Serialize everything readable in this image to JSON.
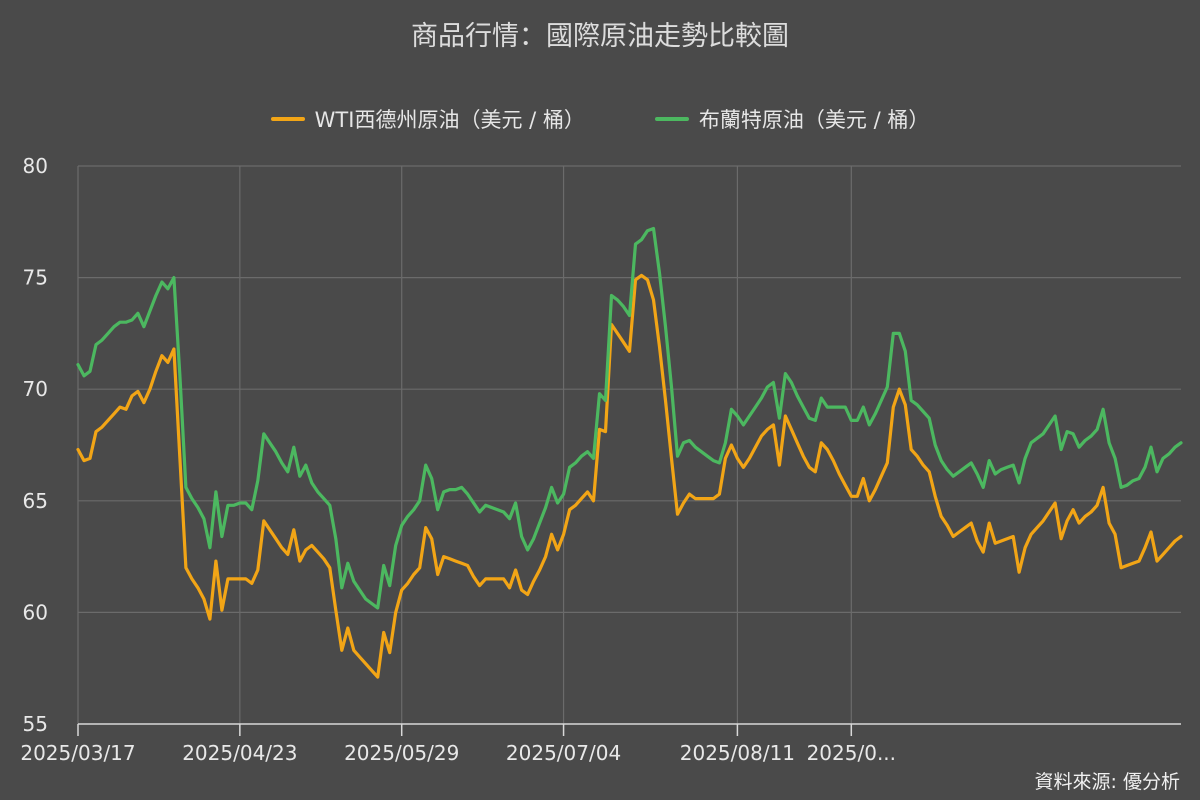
{
  "chart_data": {
    "type": "line",
    "title": "商品行情：國際原油走勢比較圖",
    "xlabel": "",
    "ylabel": "",
    "ylim": [
      55,
      80
    ],
    "yticks": [
      55,
      60,
      65,
      70,
      75,
      80
    ],
    "xticks": [
      {
        "index": 0,
        "label": "2025/03/17"
      },
      {
        "index": 27,
        "label": "2025/04/23"
      },
      {
        "index": 54,
        "label": "2025/05/29"
      },
      {
        "index": 81,
        "label": "2025/07/04"
      },
      {
        "index": 110,
        "label": "2025/08/11"
      },
      {
        "index": 129,
        "label": "2025/0..."
      }
    ],
    "grid": true,
    "legend_position": "top-center",
    "series": [
      {
        "name": "WTI西德州原油（美元 / 桶）",
        "color": "#f2a516",
        "values": [
          67.3,
          66.8,
          66.9,
          68.1,
          68.3,
          68.6,
          68.9,
          69.2,
          69.1,
          69.7,
          69.9,
          69.4,
          70.0,
          70.8,
          71.5,
          71.2,
          71.8,
          66.9,
          62.0,
          61.5,
          61.1,
          60.6,
          59.7,
          62.3,
          60.1,
          61.5,
          61.5,
          61.5,
          61.5,
          61.3,
          61.9,
          64.1,
          63.7,
          63.3,
          62.9,
          62.6,
          63.7,
          62.3,
          62.8,
          63.0,
          62.7,
          62.4,
          62.0,
          60.1,
          58.3,
          59.3,
          58.3,
          58.0,
          57.7,
          57.4,
          57.1,
          59.1,
          58.2,
          60.0,
          61.0,
          61.3,
          61.7,
          62.0,
          63.8,
          63.3,
          61.7,
          62.5,
          62.4,
          62.3,
          62.2,
          62.1,
          61.6,
          61.2,
          61.5,
          61.5,
          61.5,
          61.5,
          61.1,
          61.9,
          61.0,
          60.8,
          61.4,
          61.9,
          62.5,
          63.5,
          62.8,
          63.5,
          64.6,
          64.8,
          65.1,
          65.4,
          65.0,
          68.2,
          68.1,
          72.9,
          72.5,
          72.1,
          71.7,
          74.9,
          75.1,
          74.9,
          74.0,
          71.9,
          69.5,
          66.9,
          64.4,
          64.9,
          65.3,
          65.1,
          65.1,
          65.1,
          65.1,
          65.3,
          66.9,
          67.5,
          66.9,
          66.5,
          66.9,
          67.4,
          67.9,
          68.2,
          68.4,
          66.6,
          68.8,
          68.2,
          67.6,
          67.0,
          66.5,
          66.3,
          67.6,
          67.3,
          66.8,
          66.2,
          65.7,
          65.2,
          65.2,
          66.0,
          65.0,
          65.5,
          66.1,
          66.7,
          69.2,
          70.0,
          69.3,
          67.3,
          67.0,
          66.6,
          66.3,
          65.2,
          64.3,
          63.9,
          63.4,
          63.6,
          63.8,
          64.0,
          63.2,
          62.7,
          64.0,
          63.1,
          63.2,
          63.3,
          63.4,
          61.8,
          62.9,
          63.5,
          63.8,
          64.1,
          64.5,
          64.9,
          63.3,
          64.1,
          64.6,
          64.0,
          64.3,
          64.5,
          64.8,
          65.6,
          64.0,
          63.5,
          62.0,
          62.1,
          62.2,
          62.3,
          62.9,
          63.6,
          62.3,
          62.6,
          62.9,
          63.2,
          63.4
        ]
      },
      {
        "name": "布蘭特原油（美元 / 桶）",
        "color": "#4cb860",
        "values": [
          71.1,
          70.6,
          70.8,
          72.0,
          72.2,
          72.5,
          72.8,
          73.0,
          73.0,
          73.1,
          73.4,
          72.8,
          73.5,
          74.2,
          74.8,
          74.5,
          75.0,
          70.6,
          65.6,
          65.1,
          64.7,
          64.2,
          62.9,
          65.4,
          63.4,
          64.8,
          64.8,
          64.9,
          64.9,
          64.6,
          65.9,
          68.0,
          67.6,
          67.2,
          66.7,
          66.3,
          67.4,
          66.1,
          66.6,
          65.8,
          65.4,
          65.1,
          64.8,
          63.3,
          61.1,
          62.2,
          61.4,
          61.0,
          60.6,
          60.4,
          60.2,
          62.1,
          61.2,
          63.0,
          63.9,
          64.3,
          64.6,
          65.0,
          66.6,
          66.0,
          64.6,
          65.4,
          65.5,
          65.5,
          65.6,
          65.3,
          64.9,
          64.5,
          64.8,
          64.7,
          64.6,
          64.5,
          64.2,
          64.9,
          63.4,
          62.8,
          63.3,
          64.0,
          64.7,
          65.6,
          64.9,
          65.3,
          66.5,
          66.7,
          67.0,
          67.2,
          66.9,
          69.8,
          69.5,
          74.2,
          74.0,
          73.7,
          73.3,
          76.5,
          76.7,
          77.1,
          77.2,
          75.2,
          72.8,
          70.1,
          67.0,
          67.6,
          67.7,
          67.4,
          67.2,
          67.0,
          66.8,
          66.7,
          67.6,
          69.1,
          68.8,
          68.4,
          68.8,
          69.2,
          69.6,
          70.1,
          70.3,
          68.7,
          70.7,
          70.3,
          69.7,
          69.2,
          68.7,
          68.6,
          69.6,
          69.2,
          69.2,
          69.2,
          69.2,
          68.6,
          68.6,
          69.2,
          68.4,
          68.9,
          69.5,
          70.1,
          72.5,
          72.5,
          71.7,
          69.5,
          69.3,
          69.0,
          68.7,
          67.5,
          66.8,
          66.4,
          66.1,
          66.3,
          66.5,
          66.7,
          66.2,
          65.6,
          66.8,
          66.2,
          66.4,
          66.5,
          66.6,
          65.8,
          66.9,
          67.6,
          67.8,
          68.0,
          68.4,
          68.8,
          67.3,
          68.1,
          68.0,
          67.4,
          67.7,
          67.9,
          68.2,
          69.1,
          67.6,
          66.9,
          65.6,
          65.7,
          65.9,
          66.0,
          66.5,
          67.4,
          66.3,
          66.9,
          67.1,
          67.4,
          67.6
        ]
      }
    ]
  },
  "source_note": "資料來源: 優分析"
}
